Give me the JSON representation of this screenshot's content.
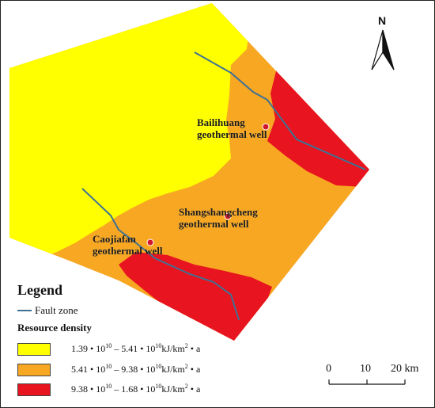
{
  "wells": [
    {
      "name_line1": "Bailihuang",
      "name_line2": "geothermal well"
    },
    {
      "name_line1": "Shangshangcheng",
      "name_line2": "geothermal well"
    },
    {
      "name_line1": "Caojiafan",
      "name_line2": "geothermal well"
    }
  ],
  "legend": {
    "title": "Legend",
    "fault_label": "Fault zone",
    "density_title": "Resource density",
    "classes": [
      {
        "from_mantissa": "1.39",
        "to_mantissa": "5.41",
        "exp": "10",
        "unit": "kJ/km",
        "unit_exp": "2",
        "tail": "• a",
        "color": "#ffff00"
      },
      {
        "from_mantissa": "5.41",
        "to_mantissa": "9.38",
        "exp": "10",
        "unit": "kJ/km",
        "unit_exp": "2",
        "tail": "• a",
        "color": "#f7a722"
      },
      {
        "from_mantissa": "9.38",
        "to_mantissa": "1.68",
        "exp": "10",
        "unit": "kJ/km",
        "unit_exp": "2",
        "tail": "• a",
        "color": "#e8141f"
      }
    ]
  },
  "scale_bar": {
    "ticks": [
      "0",
      "10",
      "20 km"
    ]
  },
  "north_arrow": {
    "label": "N"
  },
  "colors": {
    "fault": "#3f7194",
    "well_marker": "#d1162a"
  }
}
